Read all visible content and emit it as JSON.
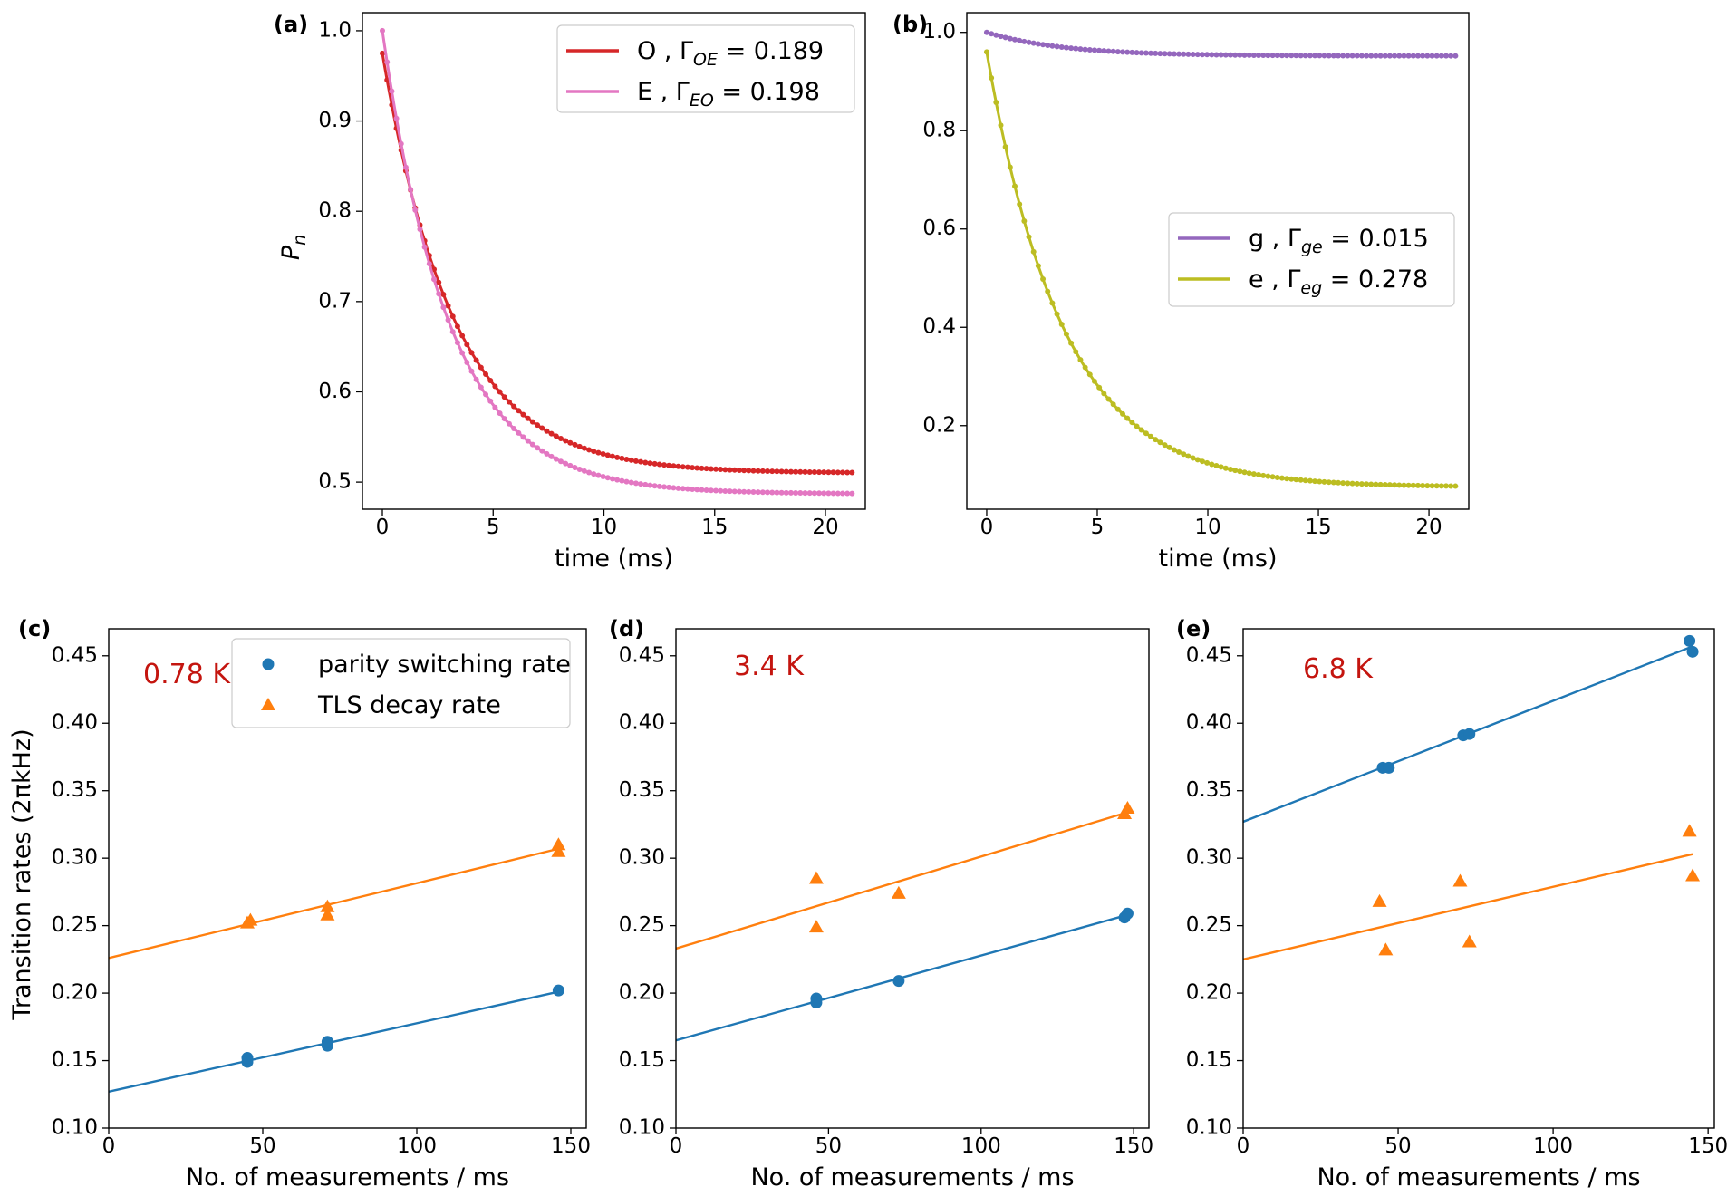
{
  "colors": {
    "red": "#d62728",
    "pink": "#e377c2",
    "purple": "#9467bd",
    "olive": "#bcbd22",
    "blue": "#1f77b4",
    "orange": "#ff7f0e",
    "temperature": "#c4150f"
  },
  "chart_data": [
    {
      "panel": "(a)",
      "type": "line",
      "xlabel": "time (ms)",
      "ylabel": "P_n",
      "xlim": [
        -0.9,
        21.8
      ],
      "ylim": [
        0.47,
        1.02
      ],
      "xticks": [
        0,
        5,
        10,
        15,
        20
      ],
      "yticks": [
        0.5,
        0.6,
        0.7,
        0.8,
        0.9,
        1.0
      ],
      "ytick_decimals": 1,
      "legend_position": "top-right",
      "series": [
        {
          "name": "O",
          "rate_subscript": "OE",
          "rate": "0.189",
          "color": "red",
          "start": 0.975,
          "end": 0.51,
          "decay": 0.31,
          "x_end": 21.2
        },
        {
          "name": "E",
          "rate_subscript": "EO",
          "rate": "0.198",
          "color": "pink",
          "start": 1.0,
          "end": 0.487,
          "decay": 0.33,
          "x_end": 21.2
        }
      ]
    },
    {
      "panel": "(b)",
      "type": "line",
      "xlabel": "time (ms)",
      "ylabel": "",
      "xlim": [
        -0.9,
        21.8
      ],
      "ylim": [
        0.03,
        1.04
      ],
      "xticks": [
        0,
        5,
        10,
        15,
        20
      ],
      "yticks": [
        0.2,
        0.4,
        0.6,
        0.8,
        1.0
      ],
      "ytick_decimals": 1,
      "legend_position": "center-right",
      "series": [
        {
          "name": "g",
          "rate_subscript": "ge",
          "rate": "0.015",
          "color": "purple",
          "start": 1.0,
          "end": 0.952,
          "decay": 0.29,
          "x_end": 21.2
        },
        {
          "name": "e",
          "rate_subscript": "eg",
          "rate": "0.278",
          "color": "olive",
          "start": 0.96,
          "end": 0.075,
          "decay": 0.29,
          "x_end": 21.2
        }
      ]
    },
    {
      "panel": "(c)",
      "type": "scatter",
      "temperature": "0.78 K",
      "xlabel": "No. of measurements / ms",
      "ylabel": "Transition rates (2πkHz)",
      "xlim": [
        0,
        155
      ],
      "ylim": [
        0.1,
        0.47
      ],
      "xticks": [
        0,
        50,
        100,
        150
      ],
      "yticks": [
        0.1,
        0.15,
        0.2,
        0.25,
        0.3,
        0.35,
        0.4,
        0.45
      ],
      "ytick_decimals": 2,
      "legend_position": "top-right",
      "series": [
        {
          "name": "parity switching rate",
          "marker": "circle",
          "color": "blue",
          "x": [
            45,
            45,
            71,
            71,
            146
          ],
          "y": [
            0.149,
            0.152,
            0.161,
            0.164,
            0.202
          ],
          "fit": [
            [
              0,
              0.127
            ],
            [
              146,
              0.201
            ]
          ]
        },
        {
          "name": "TLS decay rate",
          "marker": "triangle",
          "color": "orange",
          "x": [
            45,
            46,
            71,
            71,
            146,
            146
          ],
          "y": [
            0.252,
            0.254,
            0.258,
            0.264,
            0.305,
            0.31
          ],
          "fit": [
            [
              0,
              0.226
            ],
            [
              146,
              0.307
            ]
          ]
        }
      ]
    },
    {
      "panel": "(d)",
      "type": "scatter",
      "temperature": "3.4 K",
      "xlabel": "No. of measurements / ms",
      "ylabel": "",
      "xlim": [
        0,
        155
      ],
      "ylim": [
        0.1,
        0.47
      ],
      "xticks": [
        0,
        50,
        100,
        150
      ],
      "yticks": [
        0.1,
        0.15,
        0.2,
        0.25,
        0.3,
        0.35,
        0.4,
        0.45
      ],
      "ytick_decimals": 2,
      "series": [
        {
          "name": "parity switching rate",
          "marker": "circle",
          "color": "blue",
          "x": [
            46,
            46,
            73,
            147,
            148
          ],
          "y": [
            0.193,
            0.196,
            0.209,
            0.256,
            0.259
          ],
          "fit": [
            [
              0,
              0.165
            ],
            [
              148,
              0.258
            ]
          ]
        },
        {
          "name": "TLS decay rate",
          "marker": "triangle",
          "color": "orange",
          "x": [
            46,
            46,
            73,
            147,
            148
          ],
          "y": [
            0.249,
            0.285,
            0.274,
            0.333,
            0.337
          ],
          "fit": [
            [
              0,
              0.233
            ],
            [
              148,
              0.334
            ]
          ]
        }
      ]
    },
    {
      "panel": "(e)",
      "type": "scatter",
      "temperature": "6.8 K",
      "xlabel": "No. of measurements / ms",
      "ylabel": "",
      "xlim": [
        0,
        152
      ],
      "ylim": [
        0.1,
        0.47
      ],
      "xticks": [
        0,
        50,
        100,
        150
      ],
      "yticks": [
        0.1,
        0.15,
        0.2,
        0.25,
        0.3,
        0.35,
        0.4,
        0.45
      ],
      "ytick_decimals": 2,
      "series": [
        {
          "name": "parity switching rate",
          "marker": "circle",
          "color": "blue",
          "x": [
            45,
            47,
            71,
            73,
            144,
            145
          ],
          "y": [
            0.367,
            0.367,
            0.391,
            0.392,
            0.461,
            0.453
          ],
          "fit": [
            [
              0,
              0.327
            ],
            [
              145,
              0.457
            ]
          ]
        },
        {
          "name": "TLS decay rate",
          "marker": "triangle",
          "color": "orange",
          "x": [
            44,
            46,
            70,
            73,
            144,
            145
          ],
          "y": [
            0.268,
            0.232,
            0.283,
            0.238,
            0.32,
            0.287
          ],
          "fit": [
            [
              0,
              0.225
            ],
            [
              145,
              0.303
            ]
          ]
        }
      ]
    }
  ]
}
